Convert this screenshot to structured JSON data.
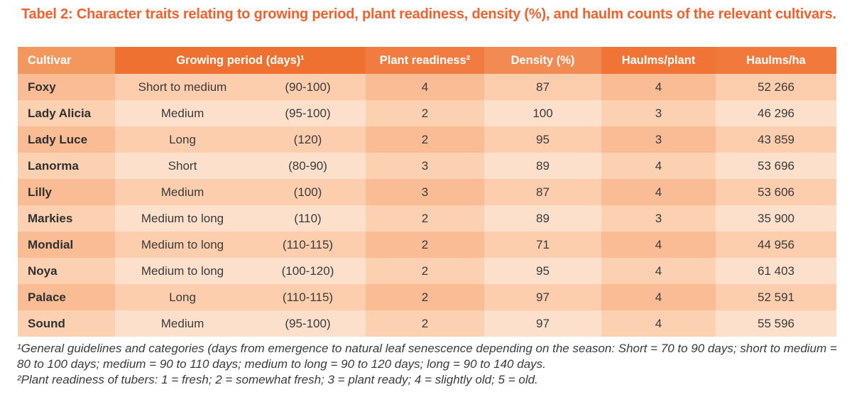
{
  "title": "Tabel 2: Character traits relating to growing period, plant readiness, density (%), and haulm counts of the relevant cultivars.",
  "table": {
    "columns": [
      {
        "label": "Cultivar"
      },
      {
        "label": "Growing period (days)¹"
      },
      {
        "label": "Plant readiness²"
      },
      {
        "label": "Density (%)"
      },
      {
        "label": "Haulms/plant"
      },
      {
        "label": "Haulms/ha"
      }
    ],
    "rows": [
      {
        "cultivar": "Foxy",
        "growing_period": "Short to medium",
        "growing_period_days": "(90-100)",
        "plant_readiness": "4",
        "density_pct": "87",
        "haulms_per_plant": "4",
        "haulms_per_ha": "52 266"
      },
      {
        "cultivar": "Lady Alicia",
        "growing_period": "Medium",
        "growing_period_days": "(95-100)",
        "plant_readiness": "2",
        "density_pct": "100",
        "haulms_per_plant": "3",
        "haulms_per_ha": "46 296"
      },
      {
        "cultivar": "Lady Luce",
        "growing_period": "Long",
        "growing_period_days": "(120)",
        "plant_readiness": "2",
        "density_pct": "95",
        "haulms_per_plant": "3",
        "haulms_per_ha": "43 859"
      },
      {
        "cultivar": "Lanorma",
        "growing_period": "Short",
        "growing_period_days": "(80-90)",
        "plant_readiness": "3",
        "density_pct": "89",
        "haulms_per_plant": "4",
        "haulms_per_ha": "53 696"
      },
      {
        "cultivar": "Lilly",
        "growing_period": "Medium",
        "growing_period_days": "(100)",
        "plant_readiness": "3",
        "density_pct": "87",
        "haulms_per_plant": "4",
        "haulms_per_ha": "53 606"
      },
      {
        "cultivar": "Markies",
        "growing_period": "Medium to long",
        "growing_period_days": "(110)",
        "plant_readiness": "2",
        "density_pct": "89",
        "haulms_per_plant": "3",
        "haulms_per_ha": "35 900"
      },
      {
        "cultivar": "Mondial",
        "growing_period": "Medium to long",
        "growing_period_days": "(110-115)",
        "plant_readiness": "2",
        "density_pct": "71",
        "haulms_per_plant": "4",
        "haulms_per_ha": "44 956"
      },
      {
        "cultivar": "Noya",
        "growing_period": "Medium to long",
        "growing_period_days": "(100-120)",
        "plant_readiness": "2",
        "density_pct": "95",
        "haulms_per_plant": "4",
        "haulms_per_ha": "61 403"
      },
      {
        "cultivar": "Palace",
        "growing_period": "Long",
        "growing_period_days": "(110-115)",
        "plant_readiness": "2",
        "density_pct": "97",
        "haulms_per_plant": "4",
        "haulms_per_ha": "52 591"
      },
      {
        "cultivar": "Sound",
        "growing_period": "Medium",
        "growing_period_days": "(95-100)",
        "plant_readiness": "2",
        "density_pct": "97",
        "haulms_per_plant": "4",
        "haulms_per_ha": "55 596"
      }
    ]
  },
  "footnotes": [
    "¹General guidelines and categories (days from emergence to natural leaf senescence depending on the season: Short = 70 to 90 days; short to medium = 80 to 100 days; medium = 90 to 110 days; medium to long = 90 to 120 days; long = 90 to 140 days.",
    "²Plant readiness of tubers: 1 = fresh; 2 = somewhat fresh; 3 = plant ready; 4 = slightly old; 5 = old."
  ],
  "colors": {
    "title": "#F2602C",
    "header_text": "#FFFFFF",
    "header_cultivar": "#F2985E",
    "header_growing_period": "#EE7132",
    "header_plant_readiness": "#F07C41",
    "header_density": "#F18A53",
    "header_haulms_plant": "#EF7435",
    "header_haulms_ha": "#F0793B",
    "row_dark_col_dark": "#F9BC94",
    "row_dark_col_light": "#FCCEAE",
    "row_light_col_dark": "#FBD1B2",
    "row_light_col_light": "#FDE0CB",
    "body_text": "#3A3A3A"
  }
}
